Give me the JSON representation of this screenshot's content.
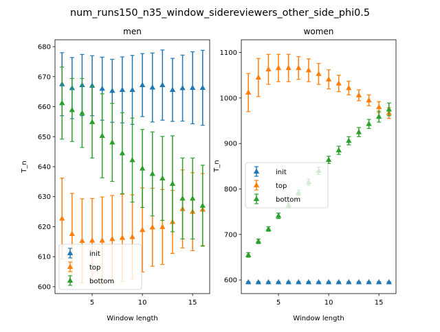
{
  "figure": {
    "suptitle": "num_runs150_n35_window_sidereviewers_other_side_phi0.5"
  },
  "colors": {
    "init": "#1f77b4",
    "top": "#ff7f0e",
    "bottom": "#2ca02c"
  },
  "chart_data": [
    {
      "type": "line",
      "title": "men",
      "xlabel": "Window length",
      "ylabel": "T_n",
      "xlim": [
        1.3,
        16.7
      ],
      "ylim": [
        597.7,
        682.3
      ],
      "xticks": [
        5,
        10,
        15
      ],
      "yticks": [
        600,
        610,
        620,
        630,
        640,
        650,
        660,
        670,
        680
      ],
      "legend": {
        "placement": "lower-left",
        "entries": [
          "init",
          "top",
          "bottom"
        ]
      },
      "x": [
        2,
        3,
        4,
        5,
        6,
        7,
        8,
        9,
        10,
        11,
        12,
        13,
        14,
        15,
        16
      ],
      "series": [
        {
          "name": "init",
          "color_key": "init",
          "values": [
            667.5,
            666.2,
            667.2,
            667.0,
            666.0,
            665.3,
            665.6,
            665.6,
            667.2,
            666.4,
            667.2,
            665.6,
            666.2,
            666.3,
            666.3
          ],
          "err": [
            10.5,
            10.2,
            10.2,
            10.0,
            10.5,
            10.5,
            11.0,
            11.5,
            10.5,
            11.5,
            11.7,
            10.5,
            11.0,
            12.0,
            12.5
          ]
        },
        {
          "name": "top",
          "color_key": "top",
          "values": [
            622.7,
            617.6,
            615.3,
            615.4,
            615.4,
            615.9,
            616.3,
            616.6,
            618.9,
            619.8,
            619.9,
            621.6,
            625.9,
            625.0,
            625.7
          ],
          "err": [
            13.5,
            13.5,
            14.0,
            14.0,
            14.5,
            14.5,
            14.5,
            14.0,
            14.0,
            13.0,
            12.5,
            10.5,
            13.0,
            13.0,
            12.0
          ]
        },
        {
          "name": "bottom",
          "color_key": "bottom",
          "values": [
            661.2,
            658.9,
            657.9,
            654.9,
            650.3,
            648.1,
            644.5,
            642.2,
            639.4,
            637.6,
            636.1,
            634.3,
            629.4,
            629.4,
            627.0
          ],
          "err": [
            12.0,
            10.5,
            11.5,
            12.0,
            14.0,
            13.0,
            13.5,
            14.0,
            13.0,
            14.0,
            14.0,
            16.0,
            13.5,
            13.5,
            13.5
          ]
        }
      ]
    },
    {
      "type": "line",
      "title": "women",
      "xlabel": "Window length",
      "ylabel": "T_n",
      "xlim": [
        1.3,
        16.7
      ],
      "ylim": [
        570,
        1128
      ],
      "xticks": [
        5,
        10,
        15
      ],
      "yticks": [
        600,
        700,
        800,
        900,
        1000,
        1100
      ],
      "legend": {
        "placement": "center-left",
        "entries": [
          "init",
          "top",
          "bottom"
        ]
      },
      "x": [
        2,
        3,
        4,
        5,
        6,
        7,
        8,
        9,
        10,
        11,
        12,
        13,
        14,
        15,
        16
      ],
      "series": [
        {
          "name": "init",
          "color_key": "init",
          "values": [
            595,
            595,
            595,
            595,
            595,
            595,
            595,
            595,
            595,
            595,
            595,
            595,
            595,
            595,
            595
          ],
          "err": [
            1,
            1,
            1,
            1,
            1,
            1,
            1,
            1,
            1,
            1,
            1,
            1,
            1,
            1,
            1
          ]
        },
        {
          "name": "top",
          "color_key": "top",
          "values": [
            1012,
            1045,
            1063,
            1066,
            1066,
            1066,
            1061,
            1053,
            1041,
            1032,
            1022,
            1006,
            995,
            980,
            967
          ],
          "err": [
            42,
            42,
            33,
            30,
            30,
            25,
            25,
            23,
            21,
            18,
            15,
            12,
            12,
            12,
            12
          ]
        },
        {
          "name": "bottom",
          "color_key": "bottom",
          "values": [
            655,
            685,
            712,
            741,
            765,
            792,
            815,
            840,
            864,
            885,
            906,
            925,
            943,
            959,
            975
          ],
          "err": [
            5,
            5,
            5,
            6,
            6,
            6,
            7,
            8,
            8,
            9,
            9,
            10,
            10,
            12,
            14
          ]
        }
      ]
    }
  ]
}
